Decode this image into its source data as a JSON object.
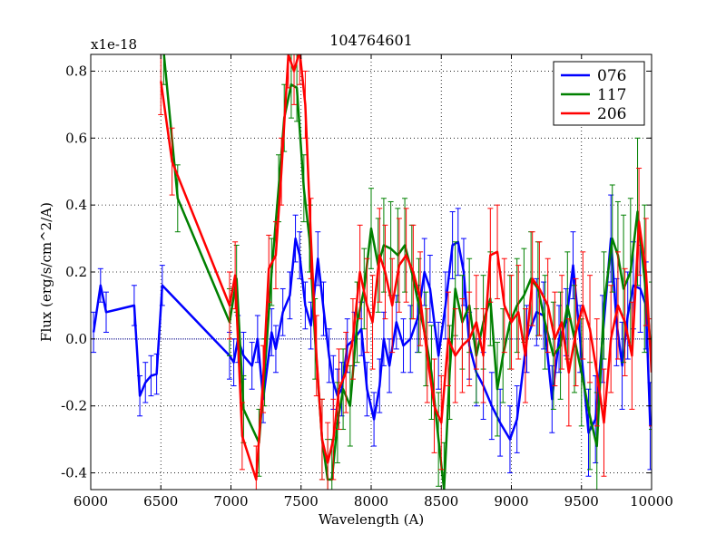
{
  "chart_data": {
    "type": "line",
    "title": "104764601",
    "xlabel": "Wavelength (A)",
    "ylabel": "Flux (erg/s/cm^2/A)",
    "y_multiplier": "x1e-18",
    "xlim": [
      6000,
      10000
    ],
    "ylim": [
      -0.45,
      0.85
    ],
    "xticks": [
      6000,
      6500,
      7000,
      7500,
      8000,
      8500,
      9000,
      9500,
      10000
    ],
    "yticks": [
      -0.4,
      -0.2,
      0.0,
      0.2,
      0.4,
      0.6,
      0.8
    ],
    "ytick_labels": [
      "-0.4",
      "-0.2",
      "0.0",
      "0.2",
      "0.4",
      "0.6",
      "0.8"
    ],
    "grid": true,
    "legend_position": "top-right",
    "series": [
      {
        "name": "076",
        "color": "#0000ff",
        "x": [
          6020,
          6070,
          6110,
          6310,
          6350,
          6390,
          6430,
          6470,
          6510,
          6990,
          7020,
          7050,
          7090,
          7150,
          7190,
          7230,
          7290,
          7320,
          7370,
          7420,
          7460,
          7490,
          7530,
          7570,
          7620,
          7660,
          7700,
          7730,
          7760,
          7790,
          7830,
          7880,
          7930,
          7970,
          8020,
          8060,
          8090,
          8130,
          8180,
          8230,
          8280,
          8330,
          8380,
          8420,
          8480,
          8530,
          8580,
          8620,
          8660,
          8700,
          8750,
          8800,
          8860,
          8920,
          8990,
          9040,
          9110,
          9180,
          9230,
          9290,
          9340,
          9390,
          9440,
          9490,
          9550,
          9600,
          9650,
          9710,
          9750,
          9790,
          9830,
          9870,
          9920,
          9960,
          9990
        ],
        "y": [
          0.02,
          0.16,
          0.08,
          0.1,
          -0.17,
          -0.13,
          -0.11,
          -0.105,
          0.16,
          -0.05,
          -0.07,
          0.0,
          -0.05,
          -0.08,
          0.0,
          -0.18,
          0.02,
          -0.03,
          0.08,
          0.13,
          0.3,
          0.25,
          0.1,
          0.04,
          0.24,
          0.09,
          -0.05,
          -0.13,
          -0.17,
          -0.15,
          -0.02,
          0.0,
          0.03,
          -0.15,
          -0.24,
          -0.14,
          0.0,
          -0.08,
          0.05,
          -0.02,
          0.0,
          0.06,
          0.2,
          0.15,
          -0.05,
          0.1,
          0.28,
          0.29,
          0.2,
          -0.02,
          -0.1,
          -0.14,
          -0.2,
          -0.25,
          -0.3,
          -0.24,
          0.0,
          0.08,
          0.07,
          -0.18,
          0.0,
          0.05,
          0.22,
          0.0,
          -0.28,
          -0.24,
          0.0,
          0.3,
          0.05,
          -0.08,
          0.07,
          0.16,
          0.15,
          0.1,
          -0.26
        ],
        "err": [
          0.06,
          0.05,
          0.06,
          0.06,
          0.06,
          0.06,
          0.06,
          0.06,
          0.06,
          0.07,
          0.07,
          0.07,
          0.07,
          0.07,
          0.07,
          0.07,
          0.07,
          0.07,
          0.07,
          0.07,
          0.07,
          0.07,
          0.07,
          0.07,
          0.08,
          0.08,
          0.08,
          0.08,
          0.08,
          0.08,
          0.08,
          0.08,
          0.08,
          0.08,
          0.08,
          0.08,
          0.08,
          0.08,
          0.08,
          0.08,
          0.1,
          0.1,
          0.1,
          0.1,
          0.1,
          0.1,
          0.1,
          0.1,
          0.1,
          0.1,
          0.1,
          0.1,
          0.1,
          0.1,
          0.1,
          0.1,
          0.1,
          0.1,
          0.1,
          0.1,
          0.1,
          0.1,
          0.1,
          0.1,
          0.13,
          0.13,
          0.13,
          0.13,
          0.13,
          0.13,
          0.13,
          0.13,
          0.13,
          0.13,
          0.13
        ]
      },
      {
        "name": "117",
        "color": "#008000",
        "x": [
          6520,
          6620,
          6990,
          7040,
          7090,
          7200,
          7240,
          7290,
          7340,
          7380,
          7430,
          7470,
          7520,
          7560,
          7600,
          7650,
          7690,
          7720,
          7760,
          7800,
          7850,
          7900,
          7950,
          8000,
          8050,
          8090,
          8140,
          8190,
          8240,
          8290,
          8340,
          8390,
          8430,
          8480,
          8520,
          8560,
          8600,
          8650,
          8700,
          8750,
          8800,
          8850,
          8900,
          8940,
          8990,
          9040,
          9090,
          9140,
          9190,
          9240,
          9300,
          9350,
          9400,
          9450,
          9500,
          9560,
          9610,
          9660,
          9720,
          9760,
          9800,
          9850,
          9900,
          9950,
          10000
        ],
        "y": [
          0.86,
          0.42,
          0.05,
          0.18,
          -0.21,
          -0.31,
          -0.1,
          0.2,
          0.45,
          0.66,
          0.76,
          0.75,
          0.45,
          0.3,
          0.0,
          -0.3,
          -0.42,
          -0.42,
          -0.25,
          -0.15,
          -0.2,
          0.05,
          0.15,
          0.33,
          0.22,
          0.28,
          0.27,
          0.25,
          0.28,
          0.2,
          0.1,
          0.0,
          -0.1,
          -0.3,
          -0.45,
          -0.1,
          0.15,
          0.05,
          0.1,
          -0.05,
          0.05,
          0.12,
          -0.15,
          -0.05,
          0.05,
          0.1,
          0.13,
          0.18,
          0.15,
          0.05,
          -0.05,
          -0.02,
          0.1,
          0.0,
          -0.1,
          -0.23,
          -0.32,
          0.1,
          0.3,
          0.25,
          0.15,
          0.2,
          0.38,
          0.18,
          -0.05
        ],
        "err": [
          0.1,
          0.1,
          0.1,
          0.1,
          0.1,
          0.1,
          0.1,
          0.1,
          0.1,
          0.1,
          0.1,
          0.1,
          0.1,
          0.1,
          0.12,
          0.12,
          0.12,
          0.12,
          0.12,
          0.12,
          0.12,
          0.12,
          0.12,
          0.12,
          0.14,
          0.14,
          0.14,
          0.14,
          0.14,
          0.14,
          0.14,
          0.14,
          0.14,
          0.14,
          0.14,
          0.14,
          0.14,
          0.14,
          0.14,
          0.14,
          0.14,
          0.14,
          0.14,
          0.14,
          0.14,
          0.14,
          0.14,
          0.14,
          0.14,
          0.14,
          0.16,
          0.16,
          0.16,
          0.16,
          0.16,
          0.16,
          0.16,
          0.16,
          0.16,
          0.16,
          0.22,
          0.22,
          0.22,
          0.22,
          0.22
        ]
      },
      {
        "name": "206",
        "color": "#ff0000",
        "x": [
          6500,
          6580,
          6990,
          7030,
          7080,
          7180,
          7230,
          7270,
          7320,
          7360,
          7410,
          7450,
          7490,
          7530,
          7570,
          7610,
          7650,
          7690,
          7730,
          7770,
          7820,
          7870,
          7920,
          7970,
          8010,
          8060,
          8100,
          8150,
          8200,
          8250,
          8300,
          8350,
          8400,
          8450,
          8500,
          8550,
          8600,
          8650,
          8700,
          8750,
          8800,
          8850,
          8900,
          8950,
          9000,
          9050,
          9100,
          9150,
          9200,
          9260,
          9310,
          9360,
          9410,
          9460,
          9510,
          9560,
          9610,
          9660,
          9710,
          9760,
          9810,
          9860,
          9910,
          9960,
          10000
        ],
        "y": [
          0.77,
          0.53,
          0.1,
          0.19,
          -0.29,
          -0.42,
          -0.12,
          0.21,
          0.25,
          0.5,
          0.85,
          0.8,
          0.86,
          0.7,
          0.3,
          -0.05,
          -0.3,
          -0.37,
          -0.3,
          -0.15,
          -0.1,
          0.0,
          0.2,
          0.1,
          0.05,
          0.25,
          0.2,
          0.1,
          0.22,
          0.25,
          0.2,
          0.12,
          -0.05,
          -0.2,
          -0.25,
          0.0,
          -0.05,
          -0.02,
          0.0,
          0.05,
          -0.05,
          0.25,
          0.26,
          0.1,
          0.05,
          0.08,
          -0.05,
          0.18,
          0.15,
          0.1,
          0.0,
          0.05,
          -0.1,
          0.02,
          0.1,
          0.03,
          -0.1,
          -0.25,
          0.0,
          0.1,
          0.05,
          -0.05,
          0.35,
          0.2,
          -0.1
        ],
        "err": [
          0.1,
          0.1,
          0.1,
          0.1,
          0.1,
          0.1,
          0.1,
          0.1,
          0.1,
          0.1,
          0.1,
          0.1,
          0.1,
          0.1,
          0.12,
          0.12,
          0.12,
          0.12,
          0.12,
          0.12,
          0.12,
          0.12,
          0.14,
          0.14,
          0.14,
          0.14,
          0.14,
          0.14,
          0.14,
          0.14,
          0.14,
          0.14,
          0.14,
          0.14,
          0.14,
          0.14,
          0.14,
          0.14,
          0.14,
          0.14,
          0.14,
          0.14,
          0.14,
          0.14,
          0.14,
          0.14,
          0.14,
          0.14,
          0.14,
          0.14,
          0.14,
          0.14,
          0.16,
          0.16,
          0.16,
          0.16,
          0.16,
          0.16,
          0.16,
          0.16,
          0.16,
          0.16,
          0.16,
          0.16,
          0.16
        ]
      }
    ]
  }
}
